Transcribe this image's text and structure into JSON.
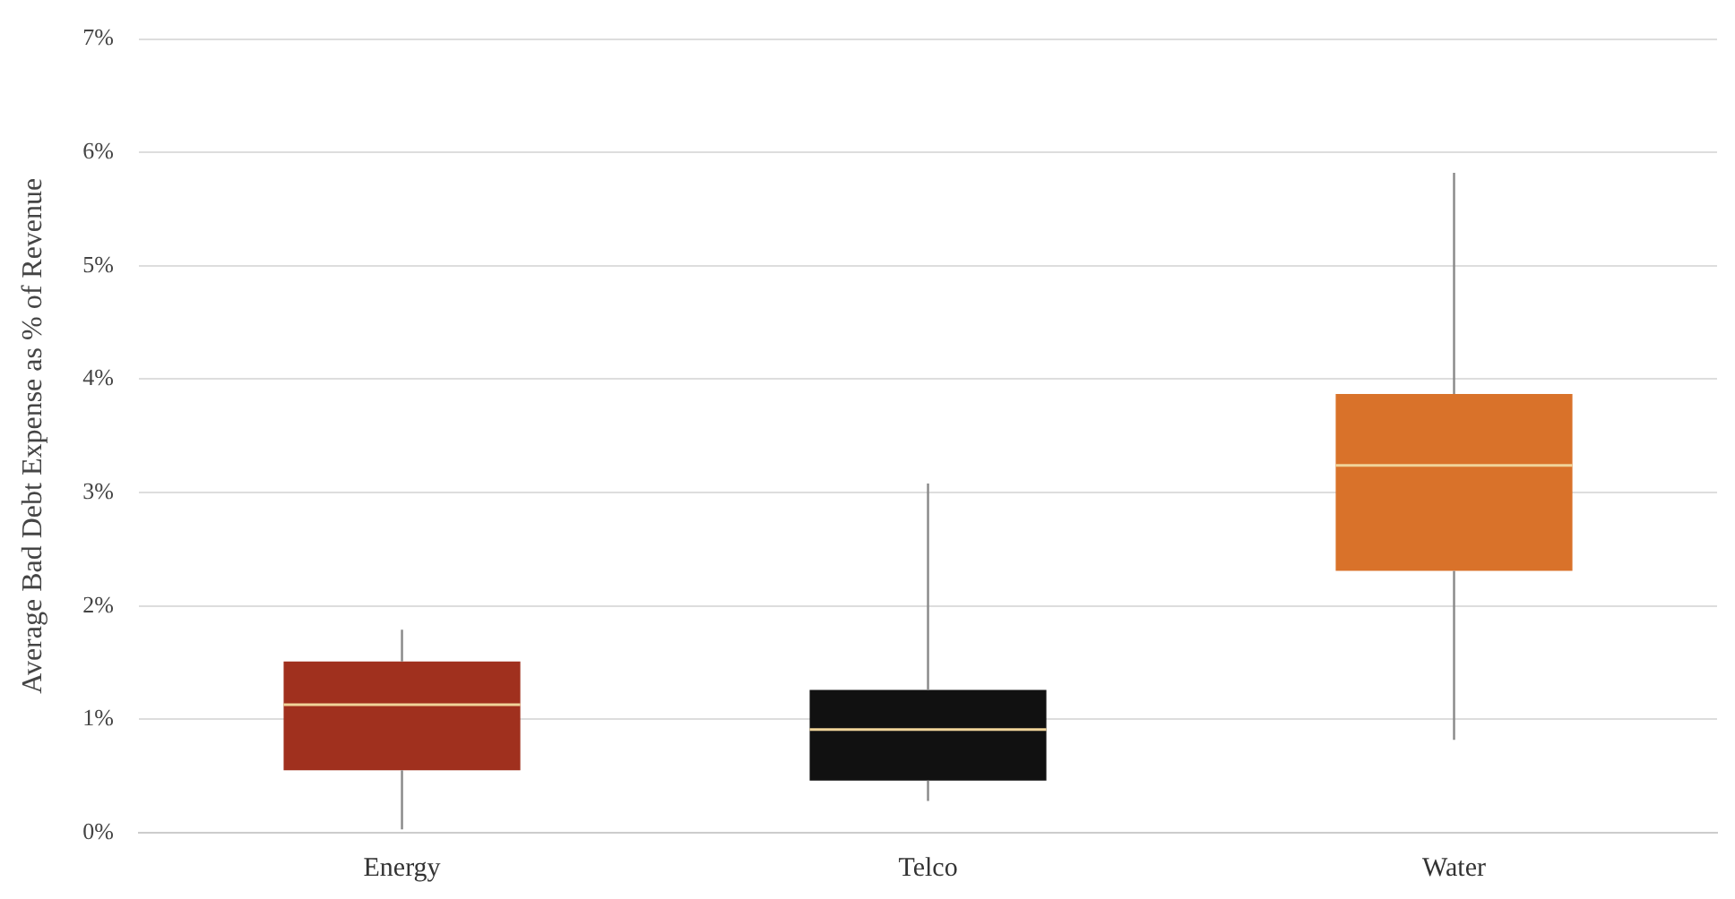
{
  "chart_data": {
    "type": "box",
    "ylabel": "Average Bad Debt Expense as % of Revenue",
    "categories": [
      "Energy",
      "Telco",
      "Water"
    ],
    "colors": [
      "#a0301e",
      "#111111",
      "#d9722a"
    ],
    "boxes": [
      {
        "low": 0.03,
        "q1": 0.55,
        "median": 1.13,
        "q3": 1.51,
        "high": 1.79
      },
      {
        "low": 0.28,
        "q1": 0.46,
        "median": 0.91,
        "q3": 1.26,
        "high": 3.08
      },
      {
        "low": 0.82,
        "q1": 2.31,
        "median": 3.24,
        "q3": 3.87,
        "high": 5.82
      }
    ],
    "ylim": [
      0,
      7
    ],
    "yticks": [
      {
        "value": 0,
        "label": "0%"
      },
      {
        "value": 1,
        "label": "1%"
      },
      {
        "value": 2,
        "label": "2%"
      },
      {
        "value": 3,
        "label": "3%"
      },
      {
        "value": 4,
        "label": "4%"
      },
      {
        "value": 5,
        "label": "5%"
      },
      {
        "value": 6,
        "label": "6%"
      },
      {
        "value": 7,
        "label": "7%"
      }
    ],
    "grid": "y",
    "legend": false
  }
}
